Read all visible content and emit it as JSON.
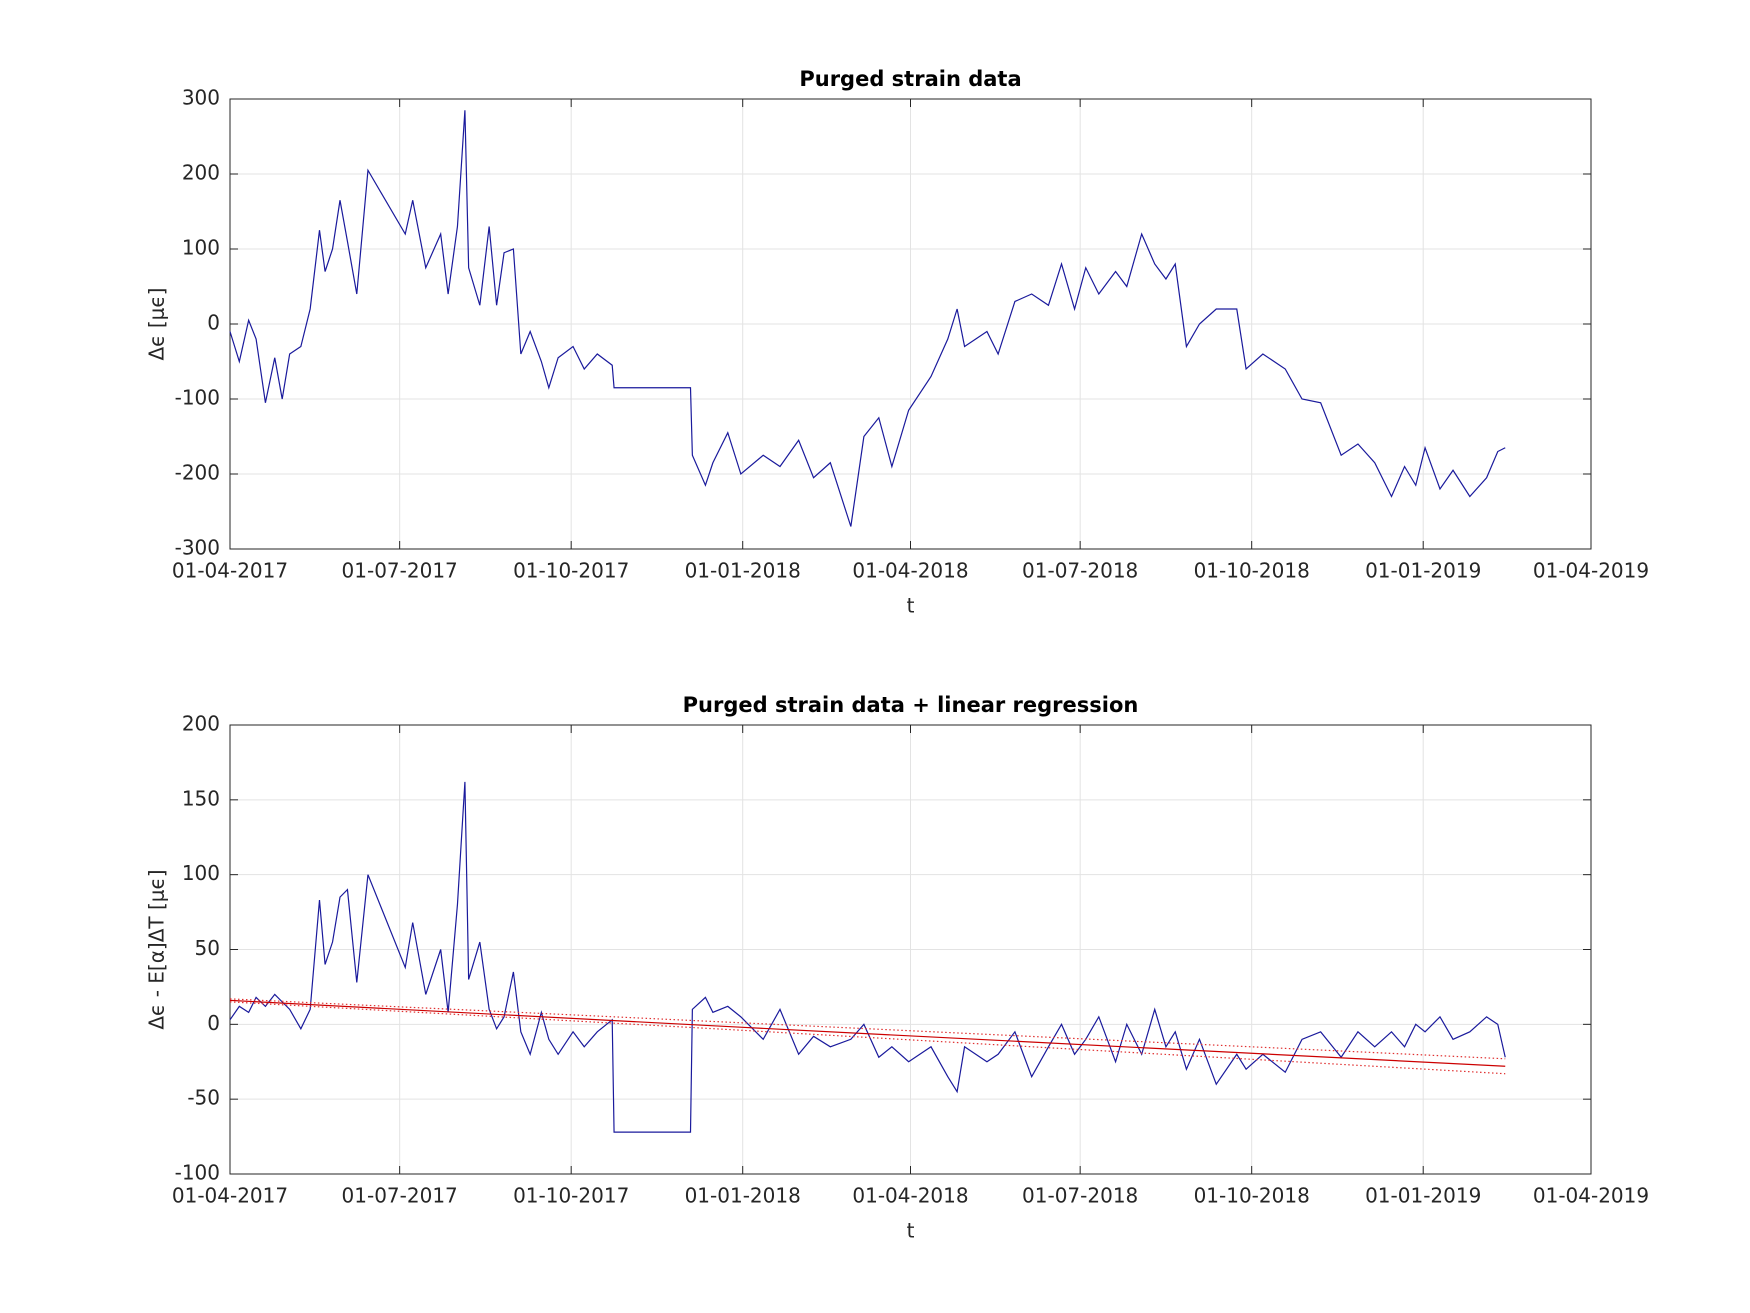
{
  "chart_data": [
    {
      "type": "line",
      "title": "Purged strain data",
      "xlabel": "t",
      "ylabel": "Δϵ [μϵ]",
      "x": [
        "01-04-2017",
        "06-04-2017",
        "11-04-2017",
        "15-04-2017",
        "20-04-2017",
        "25-04-2017",
        "29-04-2017",
        "03-05-2017",
        "09-05-2017",
        "14-05-2017",
        "19-05-2017",
        "22-05-2017",
        "26-05-2017",
        "30-05-2017",
        "03-06-2017",
        "08-06-2017",
        "14-06-2017",
        "04-07-2017",
        "08-07-2017",
        "15-07-2017",
        "23-07-2017",
        "27-07-2017",
        "01-08-2017",
        "05-08-2017",
        "07-08-2017",
        "13-08-2017",
        "18-08-2017",
        "22-08-2017",
        "26-08-2017",
        "31-08-2017",
        "04-09-2017",
        "09-09-2017",
        "15-09-2017",
        "19-09-2017",
        "24-09-2017",
        "02-10-2017",
        "08-10-2017",
        "15-10-2017",
        "23-10-2017",
        "24-10-2017",
        "04-12-2017",
        "05-12-2017",
        "12-12-2017",
        "16-12-2017",
        "24-12-2017",
        "31-12-2017",
        "12-01-2018",
        "21-01-2018",
        "31-01-2018",
        "08-02-2018",
        "17-02-2018",
        "28-02-2018",
        "07-03-2018",
        "15-03-2018",
        "22-03-2018",
        "31-03-2018",
        "12-04-2018",
        "21-04-2018",
        "26-04-2018",
        "30-04-2018",
        "12-05-2018",
        "18-05-2018",
        "27-05-2018",
        "05-06-2018",
        "14-06-2018",
        "21-06-2018",
        "28-06-2018",
        "04-07-2018",
        "11-07-2018",
        "20-07-2018",
        "26-07-2018",
        "03-08-2018",
        "10-08-2018",
        "16-08-2018",
        "21-08-2018",
        "27-08-2018",
        "03-09-2018",
        "12-09-2018",
        "23-09-2018",
        "28-09-2018",
        "07-10-2018",
        "19-10-2018",
        "28-10-2018",
        "07-11-2018",
        "18-11-2018",
        "27-11-2018",
        "06-12-2018",
        "15-12-2018",
        "22-12-2018",
        "28-12-2018",
        "02-01-2019",
        "10-01-2019",
        "17-01-2019",
        "26-01-2019",
        "04-02-2019",
        "10-02-2019",
        "14-02-2019"
      ],
      "series": [
        {
          "color": "#1a1a9c",
          "values": [
            -10,
            -50,
            5,
            -20,
            -105,
            -45,
            -100,
            -40,
            -30,
            20,
            125,
            70,
            100,
            165,
            110,
            40,
            205,
            120,
            165,
            75,
            120,
            40,
            130,
            285,
            75,
            25,
            130,
            25,
            95,
            100,
            -40,
            -10,
            -50,
            -85,
            -45,
            -30,
            -60,
            -40,
            -55,
            -85,
            -85,
            -175,
            -215,
            -185,
            -145,
            -200,
            -175,
            -190,
            -155,
            -205,
            -185,
            -270,
            -150,
            -125,
            -190,
            -115,
            -70,
            -20,
            20,
            -30,
            -10,
            -40,
            30,
            40,
            25,
            80,
            20,
            75,
            40,
            70,
            50,
            120,
            80,
            60,
            80,
            -30,
            0,
            20,
            20,
            -60,
            -40,
            -60,
            -100,
            -105,
            -175,
            -160,
            -185,
            -230,
            -190,
            -215,
            -165,
            -220,
            -195,
            -230,
            -205,
            -170,
            -165
          ]
        }
      ],
      "xlim": [
        "01-04-2017",
        "01-04-2019"
      ],
      "xticks": [
        "01-04-2017",
        "01-07-2017",
        "01-10-2017",
        "01-01-2018",
        "01-04-2018",
        "01-07-2018",
        "01-10-2018",
        "01-01-2019",
        "01-04-2019"
      ],
      "ylim": [
        -300,
        300
      ],
      "yticks": [
        -300,
        -200,
        -100,
        0,
        100,
        200,
        300
      ],
      "grid": true
    },
    {
      "type": "line",
      "title": "Purged strain data + linear regression",
      "xlabel": "t",
      "ylabel": "Δϵ - E[α]ΔT [μϵ]",
      "x": [
        "01-04-2017",
        "06-04-2017",
        "11-04-2017",
        "15-04-2017",
        "20-04-2017",
        "25-04-2017",
        "29-04-2017",
        "03-05-2017",
        "09-05-2017",
        "14-05-2017",
        "19-05-2017",
        "22-05-2017",
        "26-05-2017",
        "30-05-2017",
        "03-06-2017",
        "08-06-2017",
        "14-06-2017",
        "04-07-2017",
        "08-07-2017",
        "15-07-2017",
        "23-07-2017",
        "27-07-2017",
        "01-08-2017",
        "05-08-2017",
        "07-08-2017",
        "13-08-2017",
        "18-08-2017",
        "22-08-2017",
        "26-08-2017",
        "31-08-2017",
        "04-09-2017",
        "09-09-2017",
        "15-09-2017",
        "19-09-2017",
        "24-09-2017",
        "02-10-2017",
        "08-10-2017",
        "15-10-2017",
        "23-10-2017",
        "24-10-2017",
        "04-12-2017",
        "05-12-2017",
        "12-12-2017",
        "16-12-2017",
        "24-12-2017",
        "31-12-2017",
        "12-01-2018",
        "21-01-2018",
        "31-01-2018",
        "08-02-2018",
        "17-02-2018",
        "28-02-2018",
        "07-03-2018",
        "15-03-2018",
        "22-03-2018",
        "31-03-2018",
        "12-04-2018",
        "21-04-2018",
        "26-04-2018",
        "30-04-2018",
        "12-05-2018",
        "18-05-2018",
        "27-05-2018",
        "05-06-2018",
        "14-06-2018",
        "21-06-2018",
        "28-06-2018",
        "04-07-2018",
        "11-07-2018",
        "20-07-2018",
        "26-07-2018",
        "03-08-2018",
        "10-08-2018",
        "16-08-2018",
        "21-08-2018",
        "27-08-2018",
        "03-09-2018",
        "12-09-2018",
        "23-09-2018",
        "28-09-2018",
        "07-10-2018",
        "19-10-2018",
        "28-10-2018",
        "07-11-2018",
        "18-11-2018",
        "27-11-2018",
        "06-12-2018",
        "15-12-2018",
        "22-12-2018",
        "28-12-2018",
        "02-01-2019",
        "10-01-2019",
        "17-01-2019",
        "26-01-2019",
        "04-02-2019",
        "10-02-2019",
        "14-02-2019"
      ],
      "series": [
        {
          "color": "#1a1a9c",
          "values": [
            3,
            12,
            8,
            18,
            12,
            20,
            15,
            10,
            -3,
            10,
            83,
            40,
            55,
            85,
            90,
            28,
            100,
            38,
            68,
            20,
            50,
            8,
            80,
            162,
            30,
            55,
            10,
            -3,
            5,
            35,
            -5,
            -20,
            8,
            -10,
            -20,
            -5,
            -15,
            -5,
            3,
            -72,
            -72,
            10,
            18,
            8,
            12,
            5,
            -10,
            10,
            -20,
            -8,
            -15,
            -10,
            0,
            -22,
            -15,
            -25,
            -15,
            -35,
            -45,
            -15,
            -25,
            -20,
            -5,
            -35,
            -15,
            0,
            -20,
            -10,
            5,
            -25,
            0,
            -20,
            10,
            -15,
            -5,
            -30,
            -10,
            -40,
            -20,
            -30,
            -20,
            -32,
            -10,
            -5,
            -22,
            -5,
            -15,
            -5,
            -15,
            0,
            -5,
            5,
            -10,
            -5,
            5,
            0,
            -22
          ]
        },
        {
          "color": "#cc0000",
          "linestyle": "solid",
          "x": [
            "01-04-2017",
            "01-01-2018",
            "14-02-2019"
          ],
          "values": [
            16,
            -2,
            -28
          ]
        },
        {
          "color": "#e03030",
          "linestyle": "dotted",
          "x": [
            "01-04-2017",
            "01-01-2018",
            "14-02-2019"
          ],
          "values": [
            17,
            1,
            -23
          ]
        },
        {
          "color": "#e03030",
          "linestyle": "dotted",
          "x": [
            "01-04-2017",
            "01-01-2018",
            "14-02-2019"
          ],
          "values": [
            15,
            -4,
            -33
          ]
        }
      ],
      "xlim": [
        "01-04-2017",
        "01-04-2019"
      ],
      "xticks": [
        "01-04-2017",
        "01-07-2017",
        "01-10-2017",
        "01-01-2018",
        "01-04-2018",
        "01-07-2018",
        "01-10-2018",
        "01-01-2019",
        "01-04-2019"
      ],
      "ylim": [
        -100,
        200
      ],
      "yticks": [
        -100,
        -50,
        0,
        50,
        100,
        150,
        200
      ],
      "grid": true
    }
  ]
}
